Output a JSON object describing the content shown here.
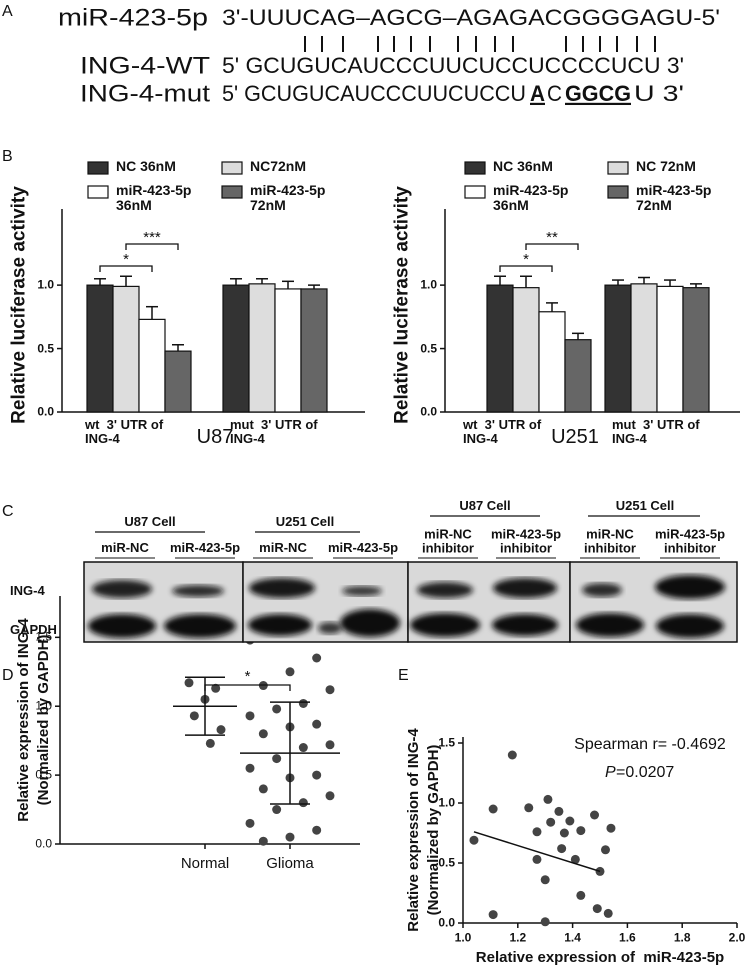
{
  "panel_a": {
    "label": "A",
    "rows": [
      {
        "name": "miR-423-5p",
        "sequence": "3'-UUUCAG–AGCG–AGAGACGGGGAGU-5'"
      },
      {
        "name": "ING-4-WT",
        "sequence": "5' GCUGUCAUCCCUUCUCCUCCCCUCU 3'"
      },
      {
        "name": "ING-4-mut",
        "sequence_parts": [
          "5' GCUGUCAUCCCUUCUCCU",
          "A",
          "C",
          "GGCG",
          "U 3'"
        ]
      }
    ]
  },
  "panel_b": {
    "label": "B"
  },
  "panel_c": {
    "label": "C",
    "groups": [
      {
        "title": "U87 Cell",
        "lanes": [
          "miR-NC",
          "miR-423-5p"
        ]
      },
      {
        "title": "U251 Cell",
        "lanes": [
          "miR-NC",
          "miR-423-5p"
        ]
      },
      {
        "title": "U87 Cell",
        "lanes": [
          "miR-NC inhibitor",
          "miR-423-5p inhibitor"
        ]
      },
      {
        "title": "U251 Cell",
        "lanes": [
          "miR-NC inhibitor",
          "miR-423-5p inhibitor"
        ]
      }
    ],
    "rows": [
      "ING-4",
      "GAPDH"
    ]
  },
  "panel_d": {
    "label": "D"
  },
  "panel_e": {
    "label": "E"
  },
  "chart_data": [
    {
      "type": "bar",
      "title": "U87",
      "ylabel": "Relative luciferase activity",
      "categories": [
        "wt  3' UTR of ING-4",
        "mut  3' UTR of ING-4"
      ],
      "series": [
        {
          "name": "NC 36nM",
          "color": "#333333",
          "values": [
            1.0,
            1.0
          ],
          "errors": [
            0.05,
            0.05
          ]
        },
        {
          "name": "NC72nM",
          "color": "#dddddd",
          "values": [
            0.99,
            1.01
          ],
          "errors": [
            0.08,
            0.04
          ]
        },
        {
          "name": "miR-423-5p 36nM",
          "color": "#ffffff",
          "values": [
            0.73,
            0.97
          ],
          "errors": [
            0.1,
            0.06
          ]
        },
        {
          "name": "miR-423-5p 72nM",
          "color": "#666666",
          "values": [
            0.48,
            0.97
          ],
          "errors": [
            0.05,
            0.03
          ]
        }
      ],
      "ylim": [
        0,
        1.6
      ],
      "yticks": [
        {
          "value": 0,
          "label": "0.0"
        },
        0.5,
        {
          "value": 1,
          "label": "1.0"
        }
      ],
      "annotations": [
        "*",
        "***"
      ]
    },
    {
      "type": "bar",
      "title": "U251",
      "ylabel": "Relative luciferase activity",
      "categories": [
        "wt  3' UTR of ING-4",
        "mut  3' UTR of ING-4"
      ],
      "series": [
        {
          "name": "NC 36nM",
          "color": "#333333",
          "values": [
            1.0,
            1.0
          ],
          "errors": [
            0.07,
            0.04
          ]
        },
        {
          "name": "NC 72nM",
          "color": "#dddddd",
          "values": [
            0.98,
            1.01
          ],
          "errors": [
            0.09,
            0.05
          ]
        },
        {
          "name": "miR-423-5p 36nM",
          "color": "#ffffff",
          "values": [
            0.79,
            0.99
          ],
          "errors": [
            0.07,
            0.05
          ]
        },
        {
          "name": "miR-423-5p 72nM",
          "color": "#666666",
          "values": [
            0.57,
            0.98
          ],
          "errors": [
            0.05,
            0.03
          ]
        }
      ],
      "ylim": [
        0,
        1.6
      ],
      "yticks": [
        {
          "value": 0,
          "label": "0.0"
        },
        0.5,
        {
          "value": 1,
          "label": "1.0"
        }
      ],
      "annotations": [
        "*",
        "**"
      ]
    },
    {
      "type": "dot",
      "ylabel": [
        "Relative expression of ING-4",
        "(Normalized by GAPDH)"
      ],
      "categories": [
        "Normal",
        "Glioma"
      ],
      "values": [
        [
          1.17,
          1.13,
          1.05,
          0.93,
          0.83,
          0.73
        ],
        [
          1.48,
          1.35,
          1.25,
          1.15,
          1.12,
          1.02,
          0.98,
          0.93,
          0.87,
          0.85,
          0.8,
          0.72,
          0.7,
          0.62,
          0.55,
          0.5,
          0.48,
          0.4,
          0.35,
          0.3,
          0.25,
          0.15,
          0.1,
          0.05,
          0.02
        ]
      ],
      "means": [
        1.0,
        0.66
      ],
      "sds": [
        0.21,
        0.37
      ],
      "color": "#444444",
      "ylim": [
        0,
        1.8
      ],
      "yticks": [
        {
          "value": 0,
          "label": "0.0"
        },
        0.5,
        {
          "value": 1,
          "label": "1.0"
        },
        1.5
      ],
      "annotations": [
        "*"
      ]
    },
    {
      "type": "scatter",
      "xlabel": "Relative expression of  miR-423-5p",
      "ylabel": [
        "Relative expression of ING-4",
        "(Normalized by GAPDH)"
      ],
      "x": [
        1.04,
        1.11,
        1.11,
        1.18,
        1.24,
        1.27,
        1.27,
        1.31,
        1.32,
        1.3,
        1.3,
        1.35,
        1.36,
        1.37,
        1.39,
        1.41,
        1.43,
        1.43,
        1.48,
        1.5,
        1.49,
        1.52,
        1.53,
        1.54
      ],
      "values": [
        0.69,
        0.95,
        0.07,
        1.4,
        0.96,
        0.53,
        0.76,
        1.03,
        0.84,
        0.36,
        0.01,
        0.93,
        0.62,
        0.75,
        0.85,
        0.53,
        0.77,
        0.23,
        0.9,
        0.43,
        0.12,
        0.61,
        0.08,
        0.79
      ],
      "color": "#444444",
      "fit_line": {
        "x": [
          1.04,
          1.5
        ],
        "values": [
          0.76,
          0.43
        ]
      },
      "annotations": [
        "Spearman r= -0.4692"
      ],
      "p_symbol": "P",
      "p_text": "=0.0207",
      "xlim": [
        1.0,
        2.0
      ],
      "xticks": [
        {
          "value": 1,
          "label": "1.0"
        },
        1.2,
        1.4,
        1.6,
        1.8,
        {
          "value": 2,
          "label": "2.0"
        }
      ],
      "ylim": [
        0,
        1.55
      ],
      "yticks": [
        {
          "value": 0,
          "label": "0.0"
        },
        0.5,
        {
          "value": 1,
          "label": "1.0"
        },
        1.5
      ]
    }
  ]
}
